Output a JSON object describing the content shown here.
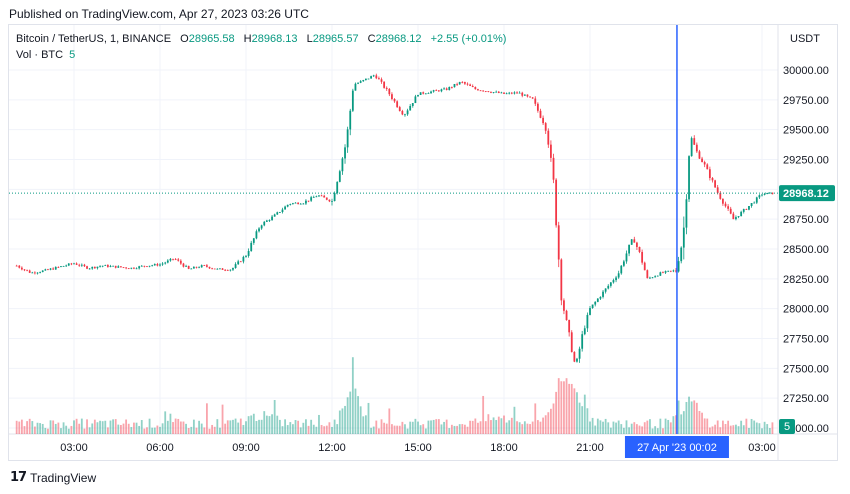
{
  "published": "Published on TradingView.com, Apr 27, 2023 03:26 UTC",
  "legend": {
    "symbol": "Bitcoin / TetherUS, 1, BINANCE",
    "o_label": "O",
    "o_value": "28965.58",
    "h_label": "H",
    "h_value": "28968.13",
    "l_label": "L",
    "l_value": "28965.57",
    "c_label": "C",
    "c_value": "28968.12",
    "change": "+2.55 (+0.01%)",
    "volume_label": "Vol · BTC",
    "volume_value": "5"
  },
  "currency": "USDT",
  "footer": {
    "brand": "TradingView",
    "logo": "17"
  },
  "colors": {
    "up": "#089981",
    "down": "#f23645",
    "crosshair": "#2962ff",
    "grid": "#f0f3fa"
  },
  "chart_data": {
    "type": "candlestick",
    "symbol": "Bitcoin / TetherUS",
    "interval": "1",
    "exchange": "BINANCE",
    "ylim": [
      27000,
      30100
    ],
    "y_ticks": [
      "30000.00",
      "29750.00",
      "29500.00",
      "29250.00",
      "29000.00",
      "28750.00",
      "28500.00",
      "28250.00",
      "28000.00",
      "27750.00",
      "27500.00",
      "27250.00",
      "27000.00"
    ],
    "x_ticks": [
      "03:00",
      "06:00",
      "09:00",
      "12:00",
      "15:00",
      "18:00",
      "21:00",
      "03:00"
    ],
    "last_price": "28968.12",
    "last_volume": "5",
    "crosshair_label": "27 Apr '23  00:02",
    "price_path": [
      [
        "01:00",
        28360
      ],
      [
        "01:30",
        28300
      ],
      [
        "02:00",
        28320
      ],
      [
        "02:30",
        28350
      ],
      [
        "03:00",
        28380
      ],
      [
        "03:30",
        28340
      ],
      [
        "04:00",
        28360
      ],
      [
        "04:30",
        28350
      ],
      [
        "05:00",
        28340
      ],
      [
        "05:30",
        28360
      ],
      [
        "06:00",
        28370
      ],
      [
        "06:30",
        28420
      ],
      [
        "07:00",
        28330
      ],
      [
        "07:30",
        28360
      ],
      [
        "08:00",
        28330
      ],
      [
        "08:30",
        28330
      ],
      [
        "09:00",
        28450
      ],
      [
        "09:30",
        28700
      ],
      [
        "10:00",
        28780
      ],
      [
        "10:30",
        28880
      ],
      [
        "11:00",
        28890
      ],
      [
        "11:30",
        28950
      ],
      [
        "12:00",
        28900
      ],
      [
        "12:30",
        29400
      ],
      [
        "12:45",
        29880
      ],
      [
        "13:00",
        29900
      ],
      [
        "13:30",
        29960
      ],
      [
        "14:00",
        29800
      ],
      [
        "14:30",
        29620
      ],
      [
        "15:00",
        29800
      ],
      [
        "15:30",
        29820
      ],
      [
        "16:00",
        29840
      ],
      [
        "16:30",
        29900
      ],
      [
        "17:00",
        29840
      ],
      [
        "17:30",
        29820
      ],
      [
        "18:00",
        29800
      ],
      [
        "18:30",
        29810
      ],
      [
        "19:00",
        29750
      ],
      [
        "19:30",
        29500
      ],
      [
        "19:45",
        29000
      ],
      [
        "20:00",
        28100
      ],
      [
        "20:15",
        27800
      ],
      [
        "20:30",
        27500
      ],
      [
        "20:45",
        27800
      ],
      [
        "21:00",
        28000
      ],
      [
        "21:30",
        28150
      ],
      [
        "22:00",
        28300
      ],
      [
        "22:30",
        28600
      ],
      [
        "22:45",
        28450
      ],
      [
        "23:00",
        28250
      ],
      [
        "23:30",
        28300
      ],
      [
        "00:00",
        28320
      ],
      [
        "00:15",
        28600
      ],
      [
        "00:30",
        29450
      ],
      [
        "00:45",
        29300
      ],
      [
        "01:00",
        29200
      ],
      [
        "01:30",
        28950
      ],
      [
        "02:00",
        28750
      ],
      [
        "02:30",
        28850
      ],
      [
        "03:00",
        28960
      ],
      [
        "03:26",
        28968
      ]
    ],
    "volume_note": "volume histogram spikes near 12:45 (~30) and 19:30–20:30 (~35), last bar 5"
  }
}
